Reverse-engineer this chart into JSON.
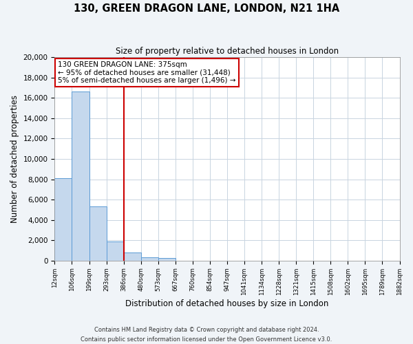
{
  "title": "130, GREEN DRAGON LANE, LONDON, N21 1HA",
  "subtitle": "Size of property relative to detached houses in London",
  "xlabel": "Distribution of detached houses by size in London",
  "ylabel": "Number of detached properties",
  "bin_labels": [
    "12sqm",
    "106sqm",
    "199sqm",
    "293sqm",
    "386sqm",
    "480sqm",
    "573sqm",
    "667sqm",
    "760sqm",
    "854sqm",
    "947sqm",
    "1041sqm",
    "1134sqm",
    "1228sqm",
    "1321sqm",
    "1415sqm",
    "1508sqm",
    "1602sqm",
    "1695sqm",
    "1789sqm",
    "1882sqm"
  ],
  "bar_values": [
    8100,
    16600,
    5300,
    1850,
    800,
    300,
    250,
    0,
    0,
    0,
    0,
    0,
    0,
    0,
    0,
    0,
    0,
    0,
    0,
    0
  ],
  "bar_color": "#c5d8ed",
  "bar_edge_color": "#5b9bd5",
  "vline_x_index": 4,
  "vline_color": "#cc0000",
  "ylim": [
    0,
    20000
  ],
  "yticks": [
    0,
    2000,
    4000,
    6000,
    8000,
    10000,
    12000,
    14000,
    16000,
    18000,
    20000
  ],
  "annotation_title": "130 GREEN DRAGON LANE: 375sqm",
  "annotation_line1": "← 95% of detached houses are smaller (31,448)",
  "annotation_line2": "5% of semi-detached houses are larger (1,496) →",
  "annotation_box_facecolor": "#ffffff",
  "annotation_box_edgecolor": "#cc0000",
  "footnote1": "Contains HM Land Registry data © Crown copyright and database right 2024.",
  "footnote2": "Contains public sector information licensed under the Open Government Licence v3.0.",
  "fig_facecolor": "#f0f4f8",
  "plot_facecolor": "#ffffff",
  "grid_color": "#c8d4e0"
}
